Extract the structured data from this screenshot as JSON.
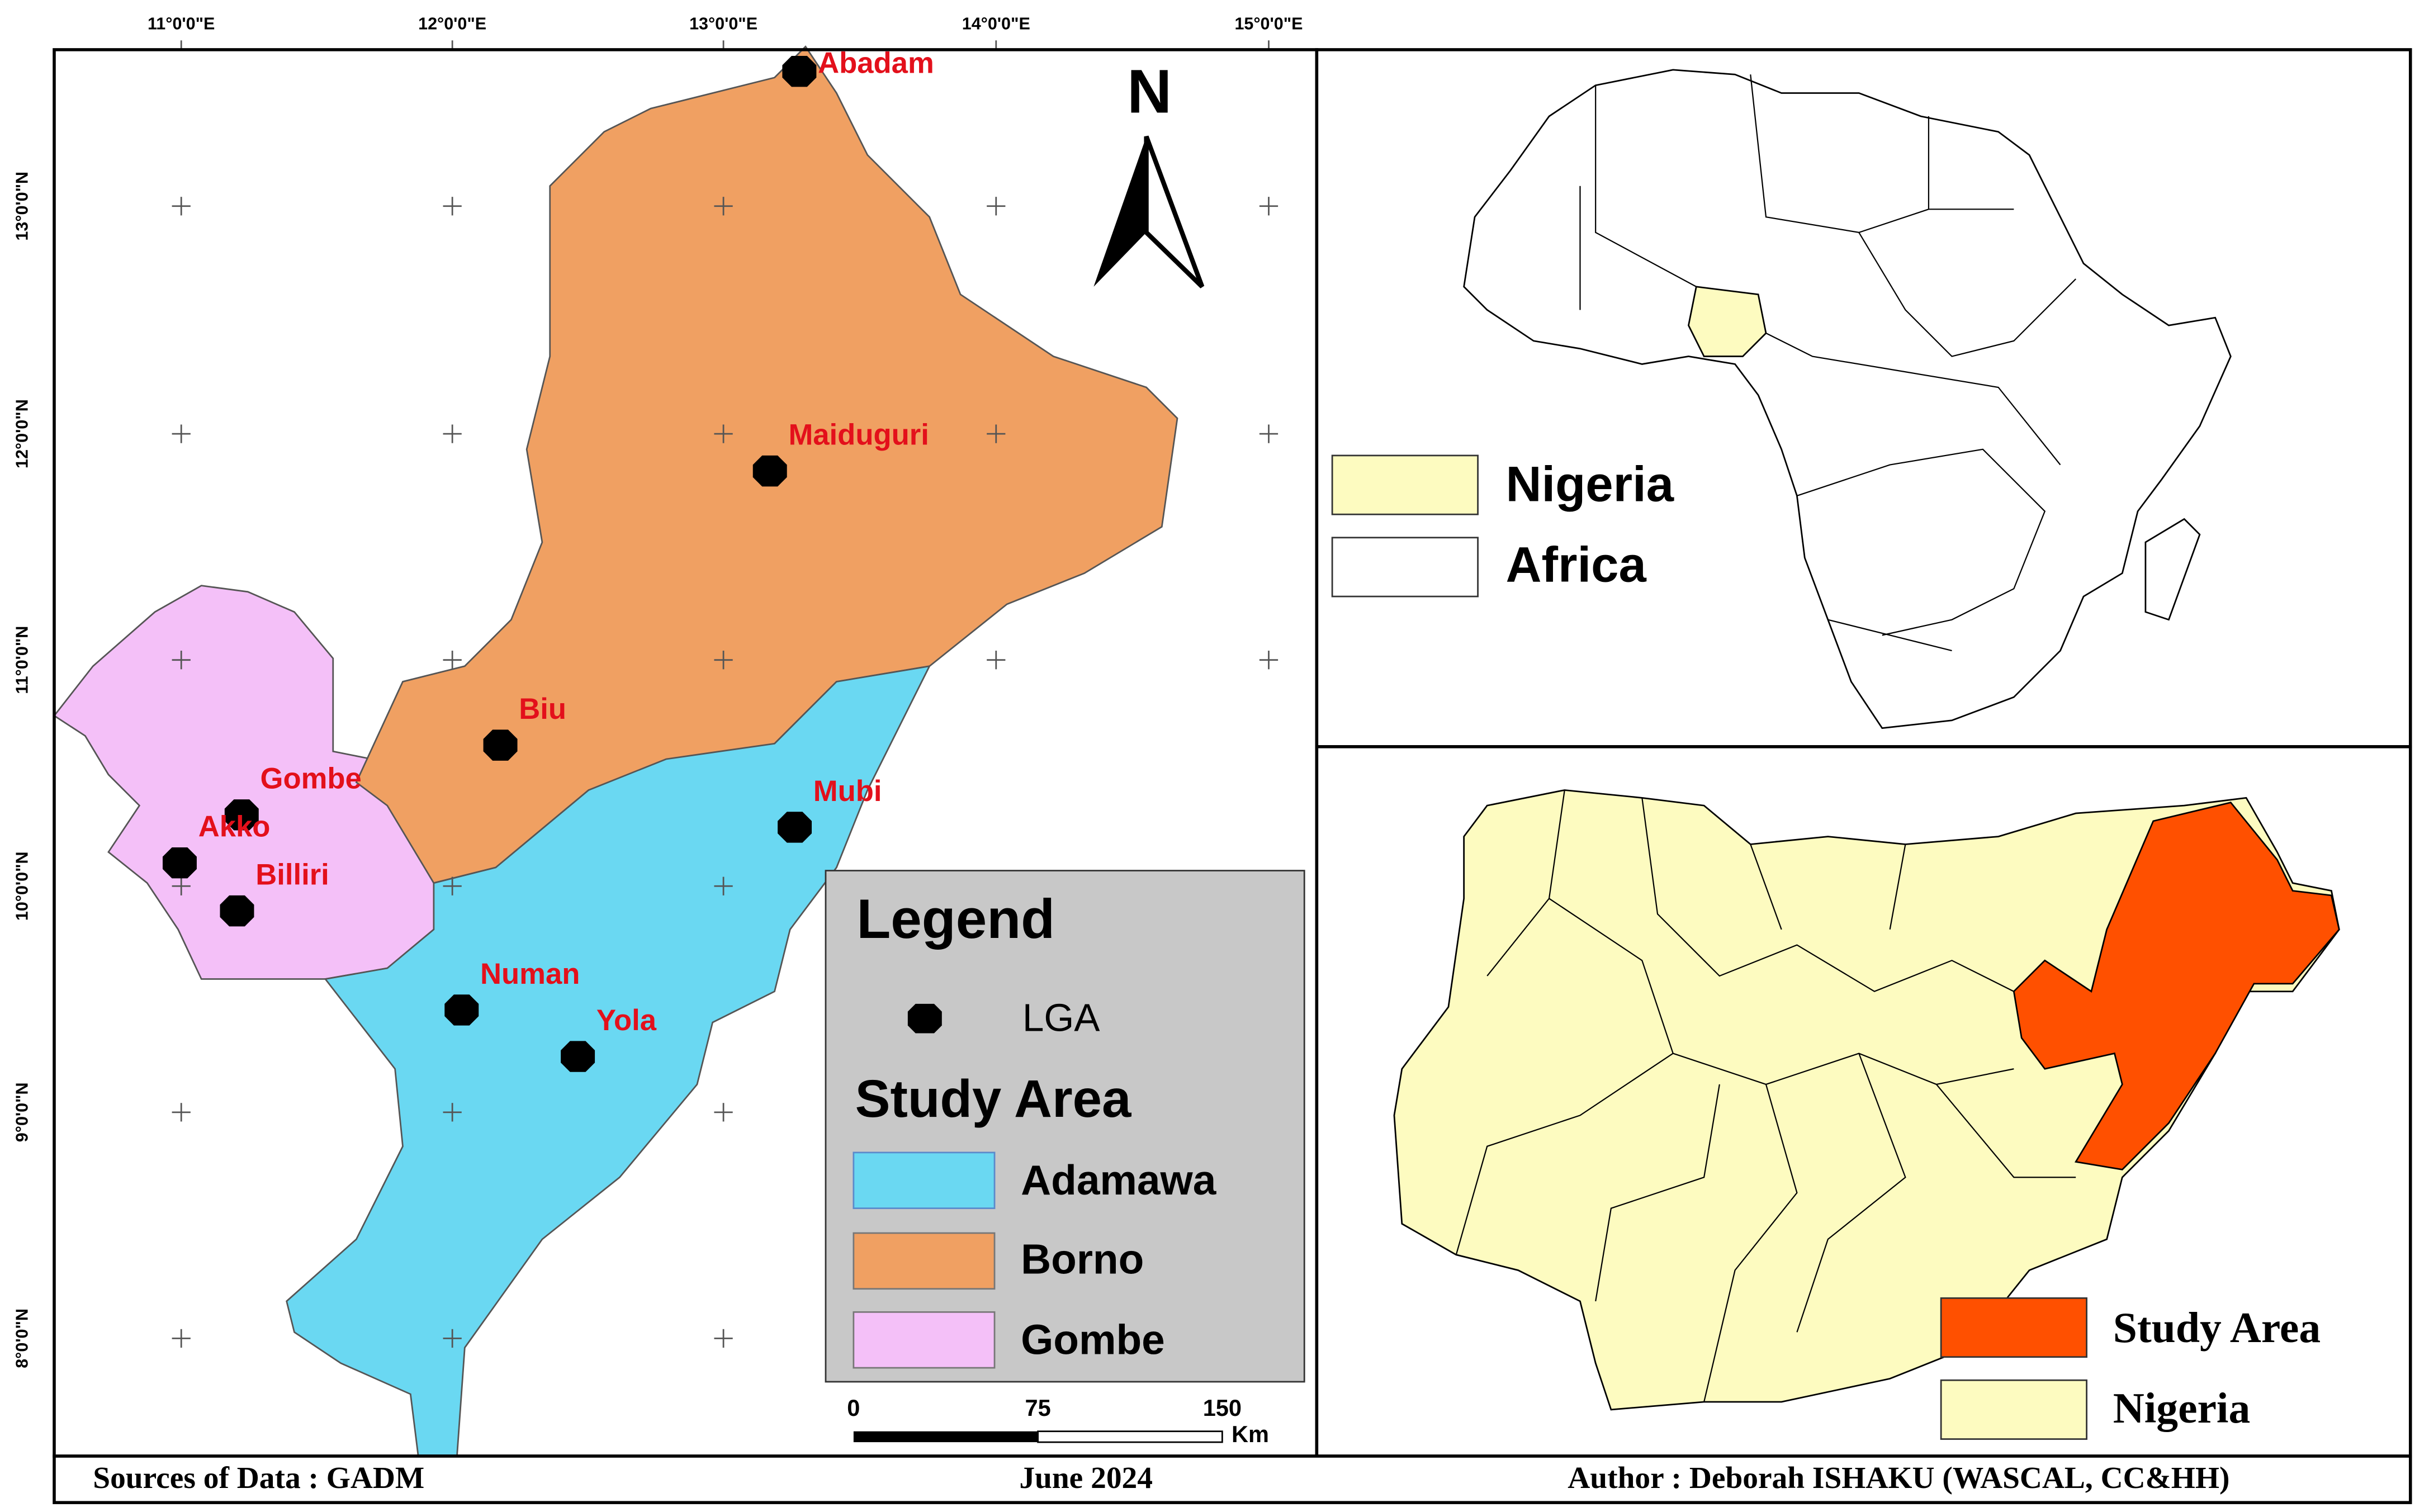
{
  "map": {
    "lon_labels": [
      "11°0'0\"E",
      "12°0'0\"E",
      "13°0'0\"E",
      "14°0'0\"E",
      "15°0'0\"E"
    ],
    "lat_labels": [
      "13°0'0\"N",
      "12°0'0\"N",
      "11°0'0\"N",
      "10°0'0\"N",
      "9°0'0\"N",
      "8°0'0\"N"
    ],
    "lgas": [
      "Abadam",
      "Maiduguri",
      "Biu",
      "Gombe",
      "Akko",
      "Billiri",
      "Mubi",
      "Numan",
      "Yola"
    ],
    "north": "N"
  },
  "legend": {
    "title": "Legend",
    "lga": "LGA",
    "study_area_title": "Study Area",
    "items": [
      "Adamawa",
      "Borno",
      "Gombe"
    ]
  },
  "scale_bar": {
    "labels": [
      "0",
      "75",
      "150"
    ],
    "unit": "Km"
  },
  "africa_inset": {
    "legend": [
      "Nigeria",
      "Africa"
    ]
  },
  "nigeria_inset": {
    "legend": [
      "Study Area",
      "Nigeria"
    ]
  },
  "footer": {
    "source": "Sources of Data : GADM",
    "date": "June 2024",
    "author": "Author : Deborah ISHAKU (WASCAL, CC&HH)"
  }
}
